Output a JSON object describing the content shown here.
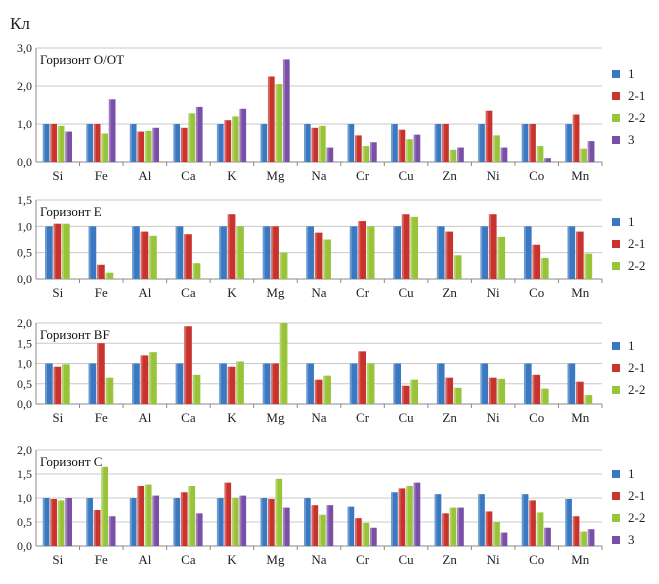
{
  "unit_label": "Кл",
  "colors": {
    "1": "#3a78c2",
    "2-1": "#c8332e",
    "2-2": "#98c43a",
    "3": "#7b4fa8",
    "grid": "#c8c8c8",
    "axis": "#8a8a8a"
  },
  "chart_data": [
    {
      "type": "bar",
      "title": "Горизонт О/ОТ",
      "categories": [
        "Si",
        "Fe",
        "Al",
        "Ca",
        "K",
        "Mg",
        "Na",
        "Cr",
        "Cu",
        "Zn",
        "Ni",
        "Co",
        "Mn"
      ],
      "ylim": [
        0,
        3.0
      ],
      "yticks": [
        "0,0",
        "1,0",
        "2,0",
        "3,0"
      ],
      "ytick_values": [
        0,
        1,
        2,
        3
      ],
      "legend": [
        "1",
        "2-1",
        "2-2",
        "3"
      ],
      "series": [
        {
          "name": "1",
          "values": [
            1.0,
            1.0,
            1.0,
            1.0,
            1.0,
            1.0,
            1.0,
            1.0,
            1.0,
            1.0,
            1.0,
            1.0,
            1.0
          ]
        },
        {
          "name": "2-1",
          "values": [
            1.0,
            1.0,
            0.8,
            0.9,
            1.1,
            2.25,
            0.9,
            0.7,
            0.85,
            1.0,
            1.35,
            1.0,
            1.25
          ]
        },
        {
          "name": "2-2",
          "values": [
            0.95,
            0.75,
            0.82,
            1.28,
            1.2,
            2.05,
            0.95,
            0.42,
            0.6,
            0.32,
            0.7,
            0.42,
            0.35
          ]
        },
        {
          "name": "3",
          "values": [
            0.8,
            1.65,
            0.9,
            1.45,
            1.4,
            2.7,
            0.38,
            0.52,
            0.72,
            0.38,
            0.38,
            0.1,
            0.55
          ]
        }
      ]
    },
    {
      "type": "bar",
      "title": "Горизонт Е",
      "categories": [
        "Si",
        "Fe",
        "Al",
        "Ca",
        "K",
        "Mg",
        "Na",
        "Cr",
        "Cu",
        "Zn",
        "Ni",
        "Co",
        "Mn"
      ],
      "ylim": [
        0,
        1.5
      ],
      "yticks": [
        "0,0",
        "0,5",
        "1,0",
        "1,5"
      ],
      "ytick_values": [
        0,
        0.5,
        1.0,
        1.5
      ],
      "legend": [
        "1",
        "2-1",
        "2-2"
      ],
      "series": [
        {
          "name": "1",
          "values": [
            1.0,
            1.0,
            1.0,
            1.0,
            1.0,
            1.0,
            1.0,
            1.0,
            1.0,
            1.0,
            1.0,
            1.0,
            1.0
          ]
        },
        {
          "name": "2-1",
          "values": [
            1.05,
            0.27,
            0.9,
            0.85,
            1.23,
            1.0,
            0.88,
            1.1,
            1.23,
            0.9,
            1.23,
            0.65,
            0.9
          ]
        },
        {
          "name": "2-2",
          "values": [
            1.05,
            0.12,
            0.82,
            0.3,
            1.0,
            0.5,
            0.75,
            1.0,
            1.18,
            0.45,
            0.8,
            0.4,
            0.48
          ]
        }
      ]
    },
    {
      "type": "bar",
      "title": "Горизонт BF",
      "categories": [
        "Si",
        "Fe",
        "Al",
        "Ca",
        "K",
        "Mg",
        "Na",
        "Cr",
        "Cu",
        "Zn",
        "Ni",
        "Co",
        "Mn"
      ],
      "ylim": [
        0,
        2.0
      ],
      "yticks": [
        "0,0",
        "0,5",
        "1,0",
        "1,5",
        "2,0"
      ],
      "ytick_values": [
        0,
        0.5,
        1.0,
        1.5,
        2.0
      ],
      "legend": [
        "1",
        "2-1",
        "2-2"
      ],
      "series": [
        {
          "name": "1",
          "values": [
            1.0,
            1.0,
            1.0,
            1.0,
            1.0,
            1.0,
            1.0,
            1.0,
            1.0,
            1.0,
            1.0,
            1.0,
            1.0
          ]
        },
        {
          "name": "2-1",
          "values": [
            0.92,
            1.5,
            1.2,
            1.92,
            0.92,
            1.0,
            0.6,
            1.3,
            0.45,
            0.65,
            0.65,
            0.72,
            0.55
          ]
        },
        {
          "name": "2-2",
          "values": [
            0.98,
            0.65,
            1.28,
            0.72,
            1.05,
            2.0,
            0.7,
            1.0,
            0.6,
            0.4,
            0.62,
            0.38,
            0.22
          ]
        }
      ]
    },
    {
      "type": "bar",
      "title": "Горизонт  С",
      "categories": [
        "Si",
        "Fe",
        "Al",
        "Ca",
        "K",
        "Mg",
        "Na",
        "Cr",
        "Cu",
        "Zn",
        "Ni",
        "Co",
        "Mn"
      ],
      "ylim": [
        0,
        2.0
      ],
      "yticks": [
        "0,0",
        "0,5",
        "1,0",
        "1,5",
        "2,0"
      ],
      "ytick_values": [
        0,
        0.5,
        1.0,
        1.5,
        2.0
      ],
      "legend": [
        "1",
        "2-1",
        "2-2",
        "3"
      ],
      "series": [
        {
          "name": "1",
          "values": [
            1.0,
            1.0,
            1.0,
            1.0,
            1.0,
            1.0,
            1.0,
            0.82,
            1.12,
            1.08,
            1.08,
            1.08,
            0.98
          ]
        },
        {
          "name": "2-1",
          "values": [
            0.98,
            0.75,
            1.25,
            1.12,
            1.32,
            0.98,
            0.85,
            0.58,
            1.2,
            0.68,
            0.72,
            0.95,
            0.62
          ]
        },
        {
          "name": "2-2",
          "values": [
            0.95,
            1.65,
            1.28,
            1.25,
            1.0,
            1.4,
            0.65,
            0.48,
            1.25,
            0.8,
            0.5,
            0.7,
            0.3
          ]
        },
        {
          "name": "3",
          "values": [
            1.0,
            0.62,
            1.05,
            0.68,
            1.05,
            0.8,
            0.85,
            0.38,
            1.32,
            0.8,
            0.28,
            0.38,
            0.35
          ]
        }
      ]
    }
  ]
}
